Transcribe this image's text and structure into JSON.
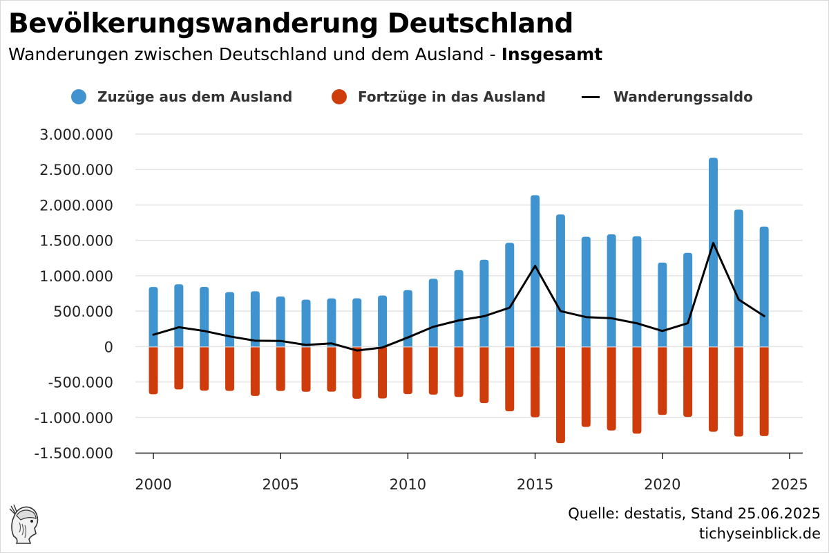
{
  "header": {
    "title": "Bevölkerungswanderung Deutschland",
    "subtitle_main": "Wanderungen zwischen Deutschland und dem Ausland - ",
    "subtitle_emph": "Insgesamt"
  },
  "legend": {
    "items": [
      {
        "label": "Zuzüge aus dem Ausland",
        "color": "#3f94cf",
        "marker": "circle"
      },
      {
        "label": "Fortzüge in das Ausland",
        "color": "#cf3c0c",
        "marker": "circle"
      },
      {
        "label": "Wanderungssaldo",
        "color": "#000000",
        "marker": "line"
      }
    ]
  },
  "footer": {
    "source": "Quelle: destatis, Stand 25.06.2025",
    "site": "tichyseinblick.de"
  },
  "logo": {
    "icon": "hermes-head-icon"
  },
  "chart_data": {
    "type": "bar",
    "x": [
      2000,
      2001,
      2002,
      2003,
      2004,
      2005,
      2006,
      2007,
      2008,
      2009,
      2010,
      2011,
      2012,
      2013,
      2014,
      2015,
      2016,
      2017,
      2018,
      2019,
      2020,
      2021,
      2022,
      2023,
      2024
    ],
    "series": [
      {
        "name": "Zuzüge aus dem Ausland",
        "type": "bar",
        "color": "#3f94cf",
        "values": [
          841000,
          879000,
          843000,
          769000,
          780000,
          707000,
          662000,
          681000,
          682000,
          721000,
          798000,
          958000,
          1081000,
          1226000,
          1465000,
          2137000,
          1865000,
          1551000,
          1585000,
          1558000,
          1186000,
          1323000,
          2666000,
          1933000,
          1694000
        ]
      },
      {
        "name": "Fortzüge in das Ausland",
        "type": "bar",
        "color": "#cf3c0c",
        "values": [
          -674000,
          -606000,
          -623000,
          -626000,
          -698000,
          -628000,
          -639000,
          -637000,
          -738000,
          -734000,
          -671000,
          -679000,
          -712000,
          -798000,
          -914000,
          -998000,
          -1365000,
          -1135000,
          -1185000,
          -1230000,
          -966000,
          -994000,
          -1203000,
          -1270000,
          -1264000
        ]
      },
      {
        "name": "Wanderungssaldo",
        "type": "line",
        "color": "#000000",
        "values": [
          167000,
          273000,
          220000,
          143000,
          82000,
          79000,
          23000,
          44000,
          -56000,
          -13000,
          128000,
          279000,
          369000,
          429000,
          550000,
          1139000,
          500000,
          416000,
          400000,
          328000,
          220000,
          329000,
          1462000,
          663000,
          430000
        ]
      }
    ],
    "xlim": [
      2000,
      2025
    ],
    "xticks": [
      2000,
      2005,
      2010,
      2015,
      2020,
      2025
    ],
    "xtick_labels": [
      "2000",
      "2005",
      "2010",
      "2015",
      "2020",
      "2025"
    ],
    "ylim": [
      -1500000,
      3000000
    ],
    "yticks": [
      -1500000,
      -1000000,
      -500000,
      0,
      500000,
      1000000,
      1500000,
      2000000,
      2500000,
      3000000
    ],
    "ytick_labels": [
      "-1.500.000",
      "-1.000.000",
      "-500.000",
      "0",
      "500.000",
      "1.000.000",
      "1.500.000",
      "2.000.000",
      "2.500.000",
      "3.000.000"
    ],
    "grid": true,
    "legend_position": "top"
  }
}
